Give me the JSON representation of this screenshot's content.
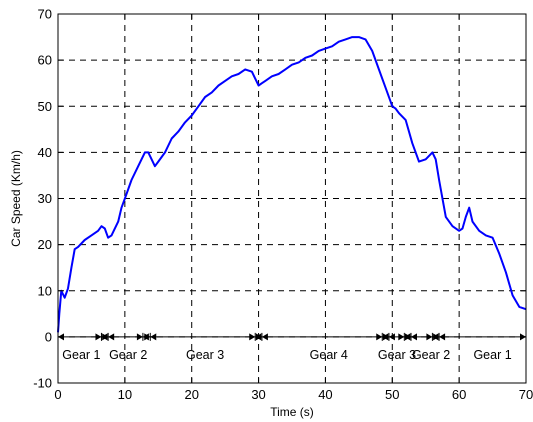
{
  "chart_data": {
    "type": "line",
    "xlabel": "Time (s)",
    "ylabel": "Car Speed (Km/h)",
    "xlim": [
      0,
      70
    ],
    "ylim": [
      -10,
      70
    ],
    "xticks": [
      0,
      10,
      20,
      30,
      40,
      50,
      60,
      70
    ],
    "yticks": [
      -10,
      0,
      10,
      20,
      30,
      40,
      50,
      60,
      70
    ],
    "grid": "dashed",
    "line_color": "#0000ff",
    "series": [
      {
        "x": [
          0,
          0.2,
          0.5,
          1,
          1.5,
          2,
          2.5,
          3,
          4,
          5,
          6,
          6.5,
          7,
          7.5,
          8,
          9,
          9.5,
          10,
          11,
          12,
          13,
          13.5,
          14,
          14.5,
          15,
          16,
          17,
          18,
          19,
          20,
          21,
          22,
          23,
          24,
          25,
          26,
          27,
          28,
          29,
          29.5,
          30,
          30.5,
          31,
          32,
          33,
          34,
          35,
          36,
          37,
          38,
          39,
          40,
          41,
          42,
          43,
          44,
          45,
          46,
          47,
          48,
          49,
          50,
          50.5,
          51,
          52,
          53,
          54,
          55,
          56,
          56.5,
          57,
          58,
          59,
          60,
          60.5,
          61,
          61.5,
          62,
          63,
          64,
          65,
          66,
          67,
          68,
          69,
          70
        ],
        "y": [
          1,
          5,
          10,
          8.5,
          10.5,
          15,
          19,
          19.5,
          21,
          22,
          23,
          24,
          23.5,
          21.5,
          22,
          25,
          28,
          30,
          34,
          37,
          40,
          40,
          38.5,
          37,
          38,
          40,
          43,
          44.5,
          46.5,
          48,
          50,
          52,
          53,
          54.5,
          55.5,
          56.5,
          57,
          58,
          57.5,
          56,
          54.5,
          55,
          55.5,
          56.5,
          57,
          58,
          59,
          59.5,
          60.5,
          61,
          62,
          62.5,
          63,
          64,
          64.5,
          65,
          65,
          64.5,
          62,
          58,
          54,
          50,
          49.5,
          48.5,
          47,
          42,
          38,
          38.5,
          40,
          38.5,
          34,
          26,
          24,
          23,
          23.5,
          26,
          28,
          25,
          23,
          22,
          21.5,
          18,
          14,
          9,
          6.5,
          6
        ]
      }
    ],
    "gear_markers": [
      0,
      6.5,
      7.5,
      12.7,
      13.8,
      29.5,
      30.5,
      48.5,
      49.5,
      51.8,
      52.8,
      56,
      57,
      70
    ],
    "gear_labels": [
      {
        "text": "Gear 1",
        "x": 3.5
      },
      {
        "text": "Gear 2",
        "x": 10.5
      },
      {
        "text": "Gear 3",
        "x": 22
      },
      {
        "text": "Gear 4",
        "x": 40.5
      },
      {
        "text": "Gear 3",
        "x": 50.7
      },
      {
        "text": "Gear 2",
        "x": 55.8
      },
      {
        "text": "Gear 1",
        "x": 65
      }
    ]
  }
}
